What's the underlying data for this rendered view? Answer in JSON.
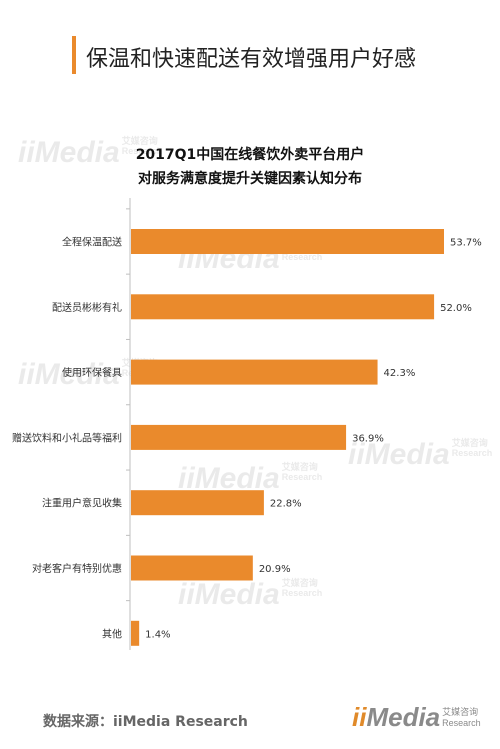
{
  "headline": "保温和快速配送有效增强用户好感",
  "chart_data": {
    "type": "bar",
    "orientation": "horizontal",
    "title_line1": "2017Q1中国在线餐饮外卖平台用户",
    "title_line2": "对服务满意度提升关键因素认知分布",
    "categories": [
      "全程保温配送",
      "配送员彬彬有礼",
      "使用环保餐具",
      "赠送饮料和小礼品等福利",
      "注重用户意见收集",
      "对老客户有特别优惠",
      "其他"
    ],
    "values": [
      53.7,
      52.0,
      42.3,
      36.9,
      22.8,
      20.9,
      1.4
    ],
    "value_labels": [
      "53.7%",
      "52.0%",
      "42.3%",
      "36.9%",
      "22.8%",
      "20.9%",
      "1.4%"
    ],
    "xlim": [
      0,
      53.7
    ],
    "bar_color": "#ea8a2c",
    "grid": false
  },
  "source": {
    "label": "数据来源：",
    "value": "iiMedia Research"
  },
  "logo": {
    "mark": "ii",
    "word": "Media",
    "tag_cn": "艾媒咨询",
    "tag_en": "Research"
  },
  "watermark": {
    "text": "iiMedia",
    "tag_cn": "艾媒咨询",
    "tag_en": "Research"
  }
}
